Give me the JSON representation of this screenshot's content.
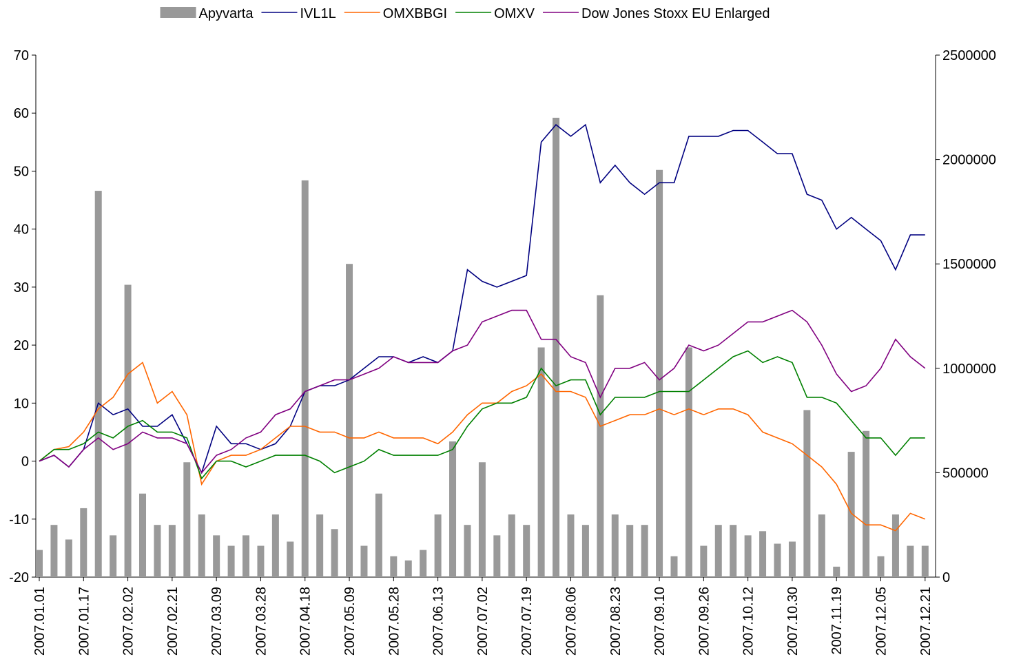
{
  "chart_data": {
    "type": "combo",
    "categories": [
      "2007.01.01",
      null,
      null,
      "2007.01.17",
      null,
      null,
      "2007.02.02",
      null,
      null,
      "2007.02.21",
      null,
      null,
      "2007.03.09",
      null,
      null,
      "2007.03.28",
      null,
      null,
      "2007.04.18",
      null,
      null,
      "2007.05.09",
      null,
      null,
      "2007.05.28",
      null,
      null,
      "2007.06.13",
      null,
      null,
      "2007.07.02",
      null,
      null,
      "2007.07.19",
      null,
      null,
      "2007.08.06",
      null,
      null,
      "2007.08.23",
      null,
      null,
      "2007.09.10",
      null,
      null,
      "2007.09.26",
      null,
      null,
      "2007.10.12",
      null,
      null,
      "2007.10.30",
      null,
      null,
      "2007.11.19",
      null,
      null,
      "2007.12.05",
      null,
      null,
      "2007.12.21"
    ],
    "series": [
      {
        "name": "Apyvarta",
        "type": "bar",
        "axis": "y2",
        "color": "#999999",
        "values": [
          130000,
          250000,
          180000,
          330000,
          1850000,
          200000,
          1400000,
          400000,
          250000,
          250000,
          550000,
          300000,
          200000,
          150000,
          200000,
          150000,
          300000,
          170000,
          1900000,
          300000,
          230000,
          1500000,
          150000,
          400000,
          100000,
          80000,
          130000,
          300000,
          650000,
          250000,
          550000,
          200000,
          300000,
          250000,
          1100000,
          2200000,
          300000,
          250000,
          1350000,
          300000,
          250000,
          250000,
          1950000,
          100000,
          1100000,
          150000,
          250000,
          250000,
          200000,
          220000,
          160000,
          170000,
          800000,
          300000,
          50000,
          600000,
          700000,
          100000,
          300000,
          150000,
          150000
        ]
      },
      {
        "name": "IVL1L",
        "type": "line",
        "color": "#000080",
        "values": [
          0,
          1,
          -1,
          2,
          10,
          8,
          9,
          6,
          6,
          8,
          3,
          -2,
          6,
          3,
          3,
          2,
          3,
          6,
          12,
          13,
          13,
          14,
          16,
          18,
          18,
          17,
          18,
          17,
          19,
          33,
          31,
          30,
          31,
          32,
          55,
          58,
          56,
          58,
          48,
          51,
          48,
          46,
          48,
          48,
          56,
          56,
          56,
          57,
          57,
          55,
          53,
          53,
          46,
          45,
          40,
          42,
          40,
          38,
          33,
          39,
          39
        ]
      },
      {
        "name": "OMXBBGI",
        "type": "line",
        "color": "#ff6600",
        "values": [
          0,
          2,
          2.5,
          5,
          9,
          11,
          15,
          17,
          10,
          12,
          8,
          -4,
          0,
          1,
          1,
          2,
          4,
          6,
          6,
          5,
          5,
          4,
          4,
          5,
          4,
          4,
          4,
          3,
          5,
          8,
          10,
          10,
          12,
          13,
          15,
          12,
          12,
          11,
          6,
          7,
          8,
          8,
          9,
          8,
          9,
          8,
          9,
          9,
          8,
          5,
          4,
          3,
          1,
          -1,
          -4,
          -9,
          -11,
          -11,
          -12,
          -9,
          -10
        ]
      },
      {
        "name": "OMXV",
        "type": "line",
        "color": "#008000",
        "values": [
          0,
          2,
          2,
          3,
          5,
          4,
          6,
          7,
          5,
          5,
          4,
          -3,
          0,
          0,
          -1,
          0,
          1,
          1,
          1,
          0,
          -2,
          -1,
          0,
          2,
          1,
          1,
          1,
          1,
          2,
          6,
          9,
          10,
          10,
          11,
          16,
          13,
          14,
          14,
          8,
          11,
          11,
          11,
          12,
          12,
          12,
          14,
          16,
          18,
          19,
          17,
          18,
          17,
          11,
          11,
          10,
          7,
          4,
          4,
          1,
          4,
          4
        ]
      },
      {
        "name": "Dow Jones Stoxx EU Enlarged",
        "type": "line",
        "color": "#800080",
        "values": [
          0,
          1,
          -1,
          2,
          4,
          2,
          3,
          5,
          4,
          4,
          3,
          -2,
          1,
          2,
          4,
          5,
          8,
          9,
          12,
          13,
          14,
          14,
          15,
          16,
          18,
          17,
          17,
          17,
          19,
          20,
          24,
          25,
          26,
          26,
          21,
          21,
          18,
          17,
          11,
          16,
          16,
          17,
          14,
          16,
          20,
          19,
          20,
          22,
          24,
          24,
          25,
          26,
          24,
          20,
          15,
          12,
          13,
          16,
          21,
          18,
          16
        ]
      }
    ],
    "ylim": [
      -20,
      70
    ],
    "yticks": [
      -20,
      -10,
      0,
      10,
      20,
      30,
      40,
      50,
      60,
      70
    ],
    "y2lim": [
      0,
      2500000
    ],
    "y2ticks": [
      0,
      500000,
      1000000,
      1500000,
      2000000,
      2500000
    ],
    "legend": "top"
  }
}
